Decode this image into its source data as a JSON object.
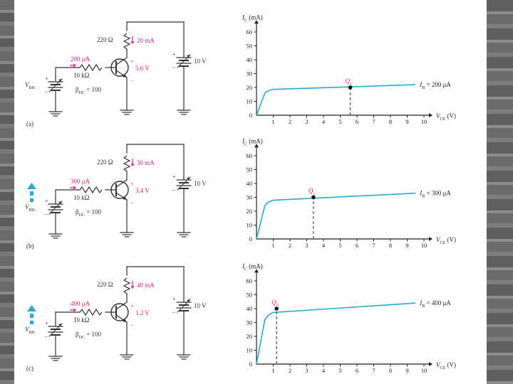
{
  "colors": {
    "circuit": "#333333",
    "magenta": "#e0218a",
    "curve": "#29abd4",
    "arrow": "#29abd4",
    "axis": "#222222",
    "dash": "#555555"
  },
  "panels": [
    {
      "label": "(a)",
      "circuit": {
        "rc": "220 Ω",
        "ic": "20 mA",
        "ib": "200 μA",
        "rb": "10 kΩ",
        "vce": "5.6 V",
        "vcc": "10 V",
        "vbb": "V",
        "vbb_sub": "BB",
        "beta": "β",
        "beta_sub": "DC",
        "beta_val": " = 100",
        "plus": "+",
        "minus": "–",
        "has_arrow": false
      },
      "chart": {
        "ylabel": "I",
        "ylabel_sub": "C",
        "ylabel_unit": " (mA)",
        "xlabel": "V",
        "xlabel_sub": "CE",
        "xlabel_unit": " (V)",
        "yticks": [
          "60",
          "50",
          "40",
          "30",
          "20",
          "10",
          "0"
        ],
        "xticks": [
          "1",
          "2",
          "3",
          "4",
          "5",
          "6",
          "7",
          "8",
          "9",
          "10"
        ],
        "q_label": "Q",
        "q_sub": "1",
        "q_x": 5.6,
        "q_y": 20,
        "ib_label": "I",
        "ib_sub": "B",
        "ib_value": " = 200 μA"
      }
    },
    {
      "label": "(b)",
      "circuit": {
        "rc": "220 Ω",
        "ic": "30 mA",
        "ib": "300 μA",
        "rb": "10 kΩ",
        "vce": "3.4 V",
        "vcc": "10 V",
        "vbb": "V",
        "vbb_sub": "BB",
        "beta": "β",
        "beta_sub": "DC",
        "beta_val": " = 100",
        "plus": "+",
        "minus": "–",
        "has_arrow": true
      },
      "chart": {
        "ylabel": "I",
        "ylabel_sub": "C",
        "ylabel_unit": " (mA)",
        "xlabel": "V",
        "xlabel_sub": "CE",
        "xlabel_unit": " (V)",
        "yticks": [
          "60",
          "50",
          "40",
          "30",
          "20",
          "10",
          "0"
        ],
        "xticks": [
          "1",
          "2",
          "3",
          "4",
          "5",
          "6",
          "7",
          "8",
          "9",
          "10"
        ],
        "q_label": "Q",
        "q_sub": "2",
        "q_x": 3.4,
        "q_y": 30,
        "ib_label": "I",
        "ib_sub": "B",
        "ib_value": " = 300 μA"
      }
    },
    {
      "label": "(c)",
      "circuit": {
        "rc": "220 Ω",
        "ic": "40 mA",
        "ib": "400 μA",
        "rb": "10 kΩ",
        "vce": "1.2 V",
        "vcc": "10 V",
        "vbb": "V",
        "vbb_sub": "BB",
        "beta": "β",
        "beta_sub": "DC",
        "beta_val": " = 100",
        "plus": "+",
        "minus": "–",
        "has_arrow": true
      },
      "chart": {
        "ylabel": "I",
        "ylabel_sub": "C",
        "ylabel_unit": " (mA)",
        "xlabel": "V",
        "xlabel_sub": "CE",
        "xlabel_unit": " (V)",
        "yticks": [
          "60",
          "50",
          "40",
          "30",
          "20",
          "10",
          "0"
        ],
        "xticks": [
          "1",
          "2",
          "3",
          "4",
          "5",
          "6",
          "7",
          "8",
          "9",
          "10"
        ],
        "q_label": "Q",
        "q_sub": "3",
        "q_x": 1.2,
        "q_y": 40,
        "ib_label": "I",
        "ib_sub": "B",
        "ib_value": " = 400 μA"
      }
    }
  ]
}
